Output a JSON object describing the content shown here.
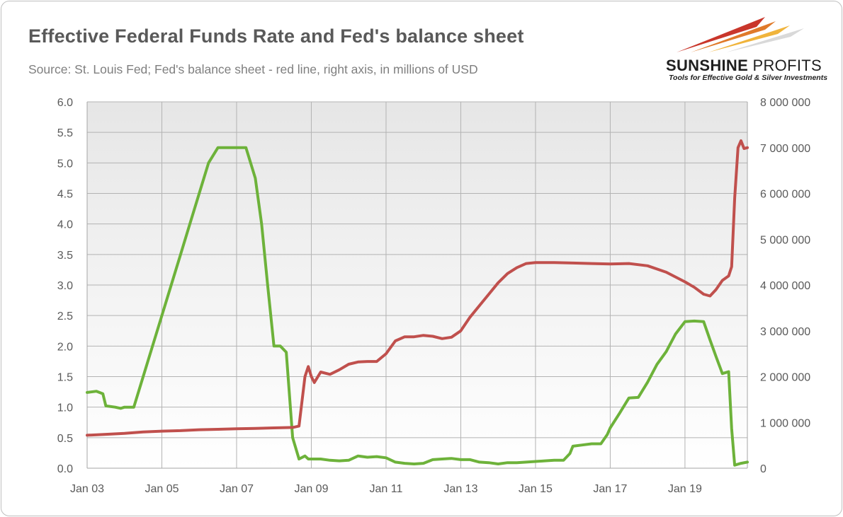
{
  "header": {
    "title": "Effective Federal Funds Rate and Fed's balance sheet",
    "subtitle": "Source: St. Louis Fed; Fed's balance sheet - red line, right axis, in millions of USD"
  },
  "logo": {
    "name_bold": "SUNSHINE",
    "name_light": "PROFITS",
    "tagline": "Tools for Effective Gold & Silver Investments"
  },
  "chart_data": {
    "type": "line",
    "title": "Effective Federal Funds Rate and Fed's balance sheet",
    "xlabel": "",
    "ylabel": "",
    "xlim": [
      2003.0,
      2020.67
    ],
    "ylim": [
      0,
      6.0
    ],
    "y2lim": [
      0,
      8000000
    ],
    "grid": true,
    "x_tick_labels": [
      "Jan 03",
      "Jan 05",
      "Jan 07",
      "Jan 09",
      "Jan 11",
      "Jan 13",
      "Jan 15",
      "Jan 17",
      "Jan 19"
    ],
    "x_ticks": [
      2003,
      2005,
      2007,
      2009,
      2011,
      2013,
      2015,
      2017,
      2019
    ],
    "y_tick_labels": [
      "0.0",
      "0.5",
      "1.0",
      "1.5",
      "2.0",
      "2.5",
      "3.0",
      "3.5",
      "4.0",
      "4.5",
      "5.0",
      "5.5",
      "6.0"
    ],
    "y_ticks": [
      0,
      0.5,
      1.0,
      1.5,
      2.0,
      2.5,
      3.0,
      3.5,
      4.0,
      4.5,
      5.0,
      5.5,
      6.0
    ],
    "y2_tick_labels": [
      "0",
      "1 000 000",
      "2 000 000",
      "3 000 000",
      "4 000 000",
      "5 000 000",
      "6 000 000",
      "7 000 000",
      "8 000 000"
    ],
    "y2_ticks": [
      0,
      1000000,
      2000000,
      3000000,
      4000000,
      5000000,
      6000000,
      7000000,
      8000000
    ],
    "series": [
      {
        "axis": "left",
        "color": "#6db23a",
        "x": [
          2003.0,
          2003.25,
          2003.42,
          2003.5,
          2003.75,
          2003.9,
          2004.0,
          2004.25,
          2004.5,
          2004.75,
          2005.0,
          2005.25,
          2005.5,
          2005.75,
          2006.0,
          2006.25,
          2006.5,
          2006.75,
          2007.0,
          2007.25,
          2007.5,
          2007.67,
          2007.83,
          2008.0,
          2008.17,
          2008.33,
          2008.5,
          2008.67,
          2008.83,
          2008.92,
          2009.0,
          2009.25,
          2009.5,
          2009.75,
          2010.0,
          2010.25,
          2010.5,
          2010.75,
          2011.0,
          2011.25,
          2011.5,
          2011.75,
          2012.0,
          2012.25,
          2012.5,
          2012.75,
          2013.0,
          2013.25,
          2013.5,
          2013.75,
          2014.0,
          2014.25,
          2014.5,
          2014.75,
          2015.0,
          2015.25,
          2015.5,
          2015.75,
          2015.92,
          2016.0,
          2016.25,
          2016.5,
          2016.75,
          2016.92,
          2017.0,
          2017.25,
          2017.5,
          2017.75,
          2018.0,
          2018.25,
          2018.5,
          2018.75,
          2019.0,
          2019.25,
          2019.5,
          2019.67,
          2019.83,
          2020.0,
          2020.17,
          2020.25,
          2020.33,
          2020.5,
          2020.67
        ],
        "y": [
          1.24,
          1.26,
          1.22,
          1.02,
          1.0,
          0.98,
          1.0,
          1.0,
          1.5,
          2.0,
          2.5,
          3.0,
          3.5,
          4.0,
          4.5,
          5.0,
          5.25,
          5.25,
          5.25,
          5.25,
          4.75,
          4.0,
          3.0,
          2.0,
          2.0,
          1.9,
          0.5,
          0.15,
          0.2,
          0.15,
          0.15,
          0.15,
          0.13,
          0.12,
          0.13,
          0.2,
          0.18,
          0.19,
          0.17,
          0.1,
          0.08,
          0.07,
          0.08,
          0.14,
          0.15,
          0.16,
          0.14,
          0.14,
          0.1,
          0.09,
          0.07,
          0.09,
          0.09,
          0.1,
          0.11,
          0.12,
          0.13,
          0.13,
          0.24,
          0.36,
          0.38,
          0.4,
          0.4,
          0.55,
          0.66,
          0.9,
          1.15,
          1.16,
          1.41,
          1.7,
          1.91,
          2.2,
          2.4,
          2.41,
          2.4,
          2.1,
          1.83,
          1.55,
          1.58,
          0.65,
          0.05,
          0.08,
          0.1
        ]
      },
      {
        "axis": "right",
        "color": "#c0504d",
        "x": [
          2003.0,
          2003.5,
          2004.0,
          2004.5,
          2005.0,
          2005.5,
          2006.0,
          2006.5,
          2007.0,
          2007.5,
          2008.0,
          2008.5,
          2008.67,
          2008.83,
          2008.92,
          2009.0,
          2009.08,
          2009.25,
          2009.5,
          2009.75,
          2010.0,
          2010.25,
          2010.5,
          2010.75,
          2011.0,
          2011.25,
          2011.5,
          2011.75,
          2012.0,
          2012.25,
          2012.5,
          2012.75,
          2013.0,
          2013.25,
          2013.5,
          2013.75,
          2014.0,
          2014.25,
          2014.5,
          2014.75,
          2015.0,
          2015.5,
          2016.0,
          2016.5,
          2017.0,
          2017.5,
          2018.0,
          2018.5,
          2019.0,
          2019.25,
          2019.5,
          2019.67,
          2019.83,
          2020.0,
          2020.17,
          2020.25,
          2020.33,
          2020.42,
          2020.5,
          2020.58,
          2020.67
        ],
        "y": [
          720000,
          740000,
          760000,
          790000,
          810000,
          820000,
          840000,
          850000,
          860000,
          870000,
          880000,
          890000,
          920000,
          2000000,
          2220000,
          2000000,
          1870000,
          2100000,
          2050000,
          2150000,
          2270000,
          2320000,
          2330000,
          2330000,
          2500000,
          2780000,
          2870000,
          2870000,
          2900000,
          2880000,
          2830000,
          2860000,
          3000000,
          3300000,
          3550000,
          3800000,
          4050000,
          4250000,
          4380000,
          4470000,
          4490000,
          4490000,
          4480000,
          4470000,
          4460000,
          4470000,
          4420000,
          4280000,
          4070000,
          3950000,
          3800000,
          3760000,
          3900000,
          4100000,
          4200000,
          4400000,
          5900000,
          7000000,
          7150000,
          6980000,
          7000000
        ]
      }
    ]
  }
}
